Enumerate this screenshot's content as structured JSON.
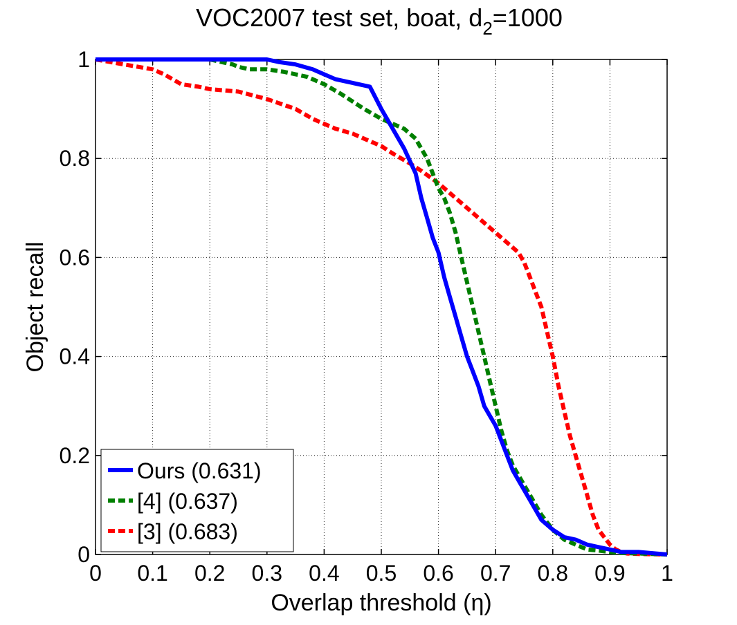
{
  "chart_data": {
    "type": "line",
    "title_main": "VOC2007 test set, boat, d",
    "title_sub": "2",
    "title_tail": "=1000",
    "xlabel": "Overlap threshold (η)",
    "ylabel": "Object recall",
    "xlim": [
      0,
      1
    ],
    "ylim": [
      0,
      1
    ],
    "grid": true,
    "xticks": [
      0,
      0.1,
      0.2,
      0.3,
      0.4,
      0.5,
      0.6,
      0.7,
      0.8,
      0.9,
      1
    ],
    "xtick_labels": [
      "0",
      "0.1",
      "0.2",
      "0.3",
      "0.4",
      "0.5",
      "0.6",
      "0.7",
      "0.8",
      "0.9",
      "1"
    ],
    "yticks": [
      0,
      0.2,
      0.4,
      0.6,
      0.8,
      1
    ],
    "ytick_labels": [
      "0",
      "0.2",
      "0.4",
      "0.6",
      "0.8",
      "1"
    ],
    "legend_position": "bottom-left",
    "series": [
      {
        "name": "Ours (0.631)",
        "color": "#0000ff",
        "style": "solid",
        "x": [
          0,
          0.05,
          0.1,
          0.15,
          0.2,
          0.25,
          0.3,
          0.32,
          0.35,
          0.38,
          0.4,
          0.42,
          0.44,
          0.46,
          0.48,
          0.5,
          0.52,
          0.54,
          0.56,
          0.57,
          0.58,
          0.59,
          0.6,
          0.61,
          0.62,
          0.63,
          0.64,
          0.65,
          0.66,
          0.67,
          0.68,
          0.69,
          0.7,
          0.71,
          0.72,
          0.73,
          0.74,
          0.75,
          0.76,
          0.78,
          0.8,
          0.82,
          0.84,
          0.86,
          0.88,
          0.9,
          0.92,
          0.95,
          1.0
        ],
        "y": [
          1.0,
          1.0,
          1.0,
          1.0,
          1.0,
          1.0,
          1.0,
          0.995,
          0.99,
          0.98,
          0.97,
          0.96,
          0.955,
          0.95,
          0.945,
          0.9,
          0.86,
          0.82,
          0.77,
          0.72,
          0.68,
          0.64,
          0.61,
          0.56,
          0.52,
          0.48,
          0.44,
          0.4,
          0.37,
          0.34,
          0.3,
          0.28,
          0.26,
          0.23,
          0.2,
          0.17,
          0.15,
          0.13,
          0.11,
          0.07,
          0.05,
          0.035,
          0.03,
          0.02,
          0.015,
          0.01,
          0.005,
          0.005,
          0.0
        ]
      },
      {
        "name": "[4] (0.637)",
        "color": "#007f00",
        "style": "dashed",
        "x": [
          0,
          0.05,
          0.1,
          0.15,
          0.2,
          0.24,
          0.25,
          0.27,
          0.3,
          0.33,
          0.35,
          0.37,
          0.4,
          0.43,
          0.45,
          0.47,
          0.5,
          0.52,
          0.54,
          0.56,
          0.57,
          0.58,
          0.59,
          0.6,
          0.61,
          0.62,
          0.63,
          0.64,
          0.65,
          0.66,
          0.67,
          0.68,
          0.69,
          0.7,
          0.71,
          0.72,
          0.73,
          0.74,
          0.75,
          0.76,
          0.78,
          0.8,
          0.82,
          0.84,
          0.86,
          0.88,
          0.9,
          0.92,
          0.95,
          1.0
        ],
        "y": [
          1.0,
          1.0,
          1.0,
          1.0,
          1.0,
          0.99,
          0.985,
          0.98,
          0.98,
          0.975,
          0.97,
          0.965,
          0.95,
          0.93,
          0.915,
          0.9,
          0.88,
          0.87,
          0.86,
          0.84,
          0.82,
          0.8,
          0.77,
          0.74,
          0.72,
          0.69,
          0.65,
          0.6,
          0.55,
          0.5,
          0.45,
          0.4,
          0.35,
          0.3,
          0.25,
          0.21,
          0.18,
          0.16,
          0.14,
          0.12,
          0.08,
          0.05,
          0.03,
          0.02,
          0.01,
          0.008,
          0.005,
          0.003,
          0.002,
          0.0
        ]
      },
      {
        "name": "[3] (0.683)",
        "color": "#ff0000",
        "style": "dashed",
        "x": [
          0,
          0.05,
          0.1,
          0.12,
          0.15,
          0.18,
          0.2,
          0.25,
          0.3,
          0.35,
          0.38,
          0.4,
          0.42,
          0.45,
          0.47,
          0.5,
          0.52,
          0.55,
          0.57,
          0.6,
          0.62,
          0.65,
          0.67,
          0.7,
          0.72,
          0.74,
          0.75,
          0.76,
          0.77,
          0.78,
          0.79,
          0.8,
          0.81,
          0.82,
          0.83,
          0.84,
          0.85,
          0.86,
          0.87,
          0.88,
          0.89,
          0.9,
          0.91,
          0.92,
          0.93,
          0.95,
          1.0
        ],
        "y": [
          1.0,
          0.99,
          0.98,
          0.97,
          0.95,
          0.945,
          0.94,
          0.935,
          0.92,
          0.9,
          0.88,
          0.87,
          0.86,
          0.85,
          0.84,
          0.825,
          0.81,
          0.79,
          0.775,
          0.75,
          0.73,
          0.7,
          0.68,
          0.65,
          0.63,
          0.61,
          0.59,
          0.56,
          0.53,
          0.5,
          0.45,
          0.4,
          0.34,
          0.29,
          0.24,
          0.2,
          0.16,
          0.12,
          0.08,
          0.05,
          0.035,
          0.02,
          0.01,
          0.005,
          0.002,
          0.001,
          0.0
        ]
      }
    ]
  }
}
